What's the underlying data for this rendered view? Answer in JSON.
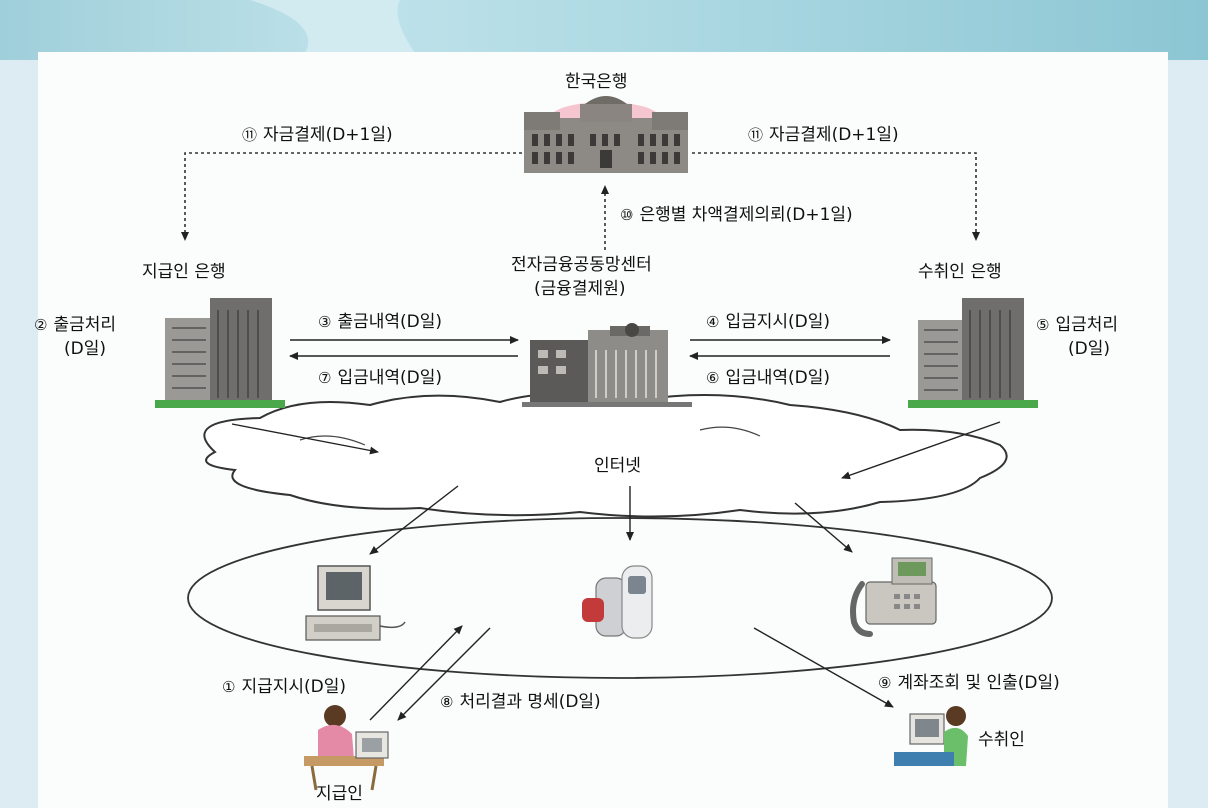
{
  "nodes": {
    "bank_of_korea": "한국은행",
    "payer_bank": "지급인 은행",
    "payee_bank": "수취인 은행",
    "center_line1": "전자금융공동망센터",
    "center_line2": "(금융결제원)",
    "internet": "인터넷",
    "payer": "지급인",
    "payee": "수취인"
  },
  "steps": [
    {
      "num": "①",
      "text": "지급지시(D일)"
    },
    {
      "num": "②",
      "text": "출금처리",
      "text2": "(D일)"
    },
    {
      "num": "③",
      "text": "출금내역(D일)"
    },
    {
      "num": "④",
      "text": "입금지시(D일)"
    },
    {
      "num": "⑤",
      "text": "입금처리",
      "text2": "(D일)"
    },
    {
      "num": "⑥",
      "text": "입금내역(D일)"
    },
    {
      "num": "⑦",
      "text": "입금내역(D일)"
    },
    {
      "num": "⑧",
      "text": "처리결과 명세(D일)"
    },
    {
      "num": "⑨",
      "text": "계좌조회 및 인출(D일)"
    },
    {
      "num": "⑩",
      "text": "은행별 차액결제의뢰(D+1일)"
    },
    {
      "num": "⑪",
      "text": "자금결제(D+1일)"
    },
    {
      "num": "⑪",
      "text": "자금결제(D+1일)"
    }
  ]
}
